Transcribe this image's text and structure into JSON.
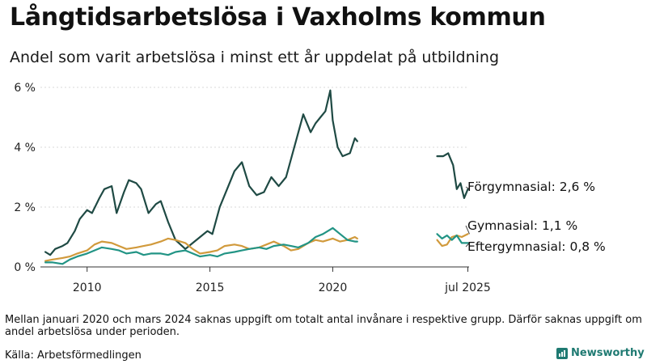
{
  "header": {
    "title": "Långtidsarbetslösa i Vaxholms kommun",
    "subtitle": "Andel som varit arbetslösa i minst ett år uppdelat på utbildning"
  },
  "footer": {
    "note": "Mellan januari 2020 och mars 2024 saknas uppgift om totalt antal invånare i respektive grupp. Därför saknas uppgift om andel arbetslösa under perioden.",
    "source": "Källa: Arbetsförmedlingen",
    "brand": "Newsworthy"
  },
  "colors": {
    "forgymnasial": "#1f4a44",
    "gymnasial": "#d19a3c",
    "eftergymnasial": "#229485",
    "grid": "#d9d9d9",
    "axis": "#333333",
    "brand": "#1f7a72"
  },
  "chart_data": {
    "type": "line",
    "title": "",
    "xlabel": "",
    "ylabel": "",
    "xlim": [
      2008.1,
      2025.55
    ],
    "ylim": [
      0,
      6
    ],
    "y_ticks": [
      0,
      2,
      4,
      6
    ],
    "y_tick_labels": [
      "0 %",
      "2 %",
      "4 %",
      "6 %"
    ],
    "x_ticks": [
      2010,
      2015,
      2020,
      2025.5
    ],
    "x_tick_labels": [
      "2010",
      "2015",
      "2020",
      "jul 2025"
    ],
    "grid": true,
    "series": [
      {
        "name": "Förgymnasial",
        "end_label": "Förgymnasial: 2,6 %",
        "color": "#1f4a44",
        "segments": [
          {
            "x": [
              2008.3,
              2008.5,
              2008.7,
              2009.0,
              2009.2,
              2009.5,
              2009.7,
              2010.0,
              2010.2,
              2010.5,
              2010.7,
              2011.0,
              2011.2,
              2011.5,
              2011.7,
              2012.0,
              2012.2,
              2012.5,
              2012.8,
              2013.0,
              2013.3,
              2013.6,
              2014.0,
              2014.3,
              2014.6,
              2014.9,
              2015.1,
              2015.4,
              2015.7,
              2016.0,
              2016.3,
              2016.6,
              2016.9,
              2017.2,
              2017.5,
              2017.8,
              2018.1,
              2018.5,
              2018.8,
              2019.1,
              2019.3,
              2019.5,
              2019.7,
              2019.9,
              2020.0,
              2020.2,
              2020.4,
              2020.7,
              2020.9,
              2021.0
            ],
            "y": [
              0.5,
              0.4,
              0.6,
              0.7,
              0.8,
              1.2,
              1.6,
              1.9,
              1.8,
              2.3,
              2.6,
              2.7,
              1.8,
              2.5,
              2.9,
              2.8,
              2.6,
              1.8,
              2.1,
              2.2,
              1.5,
              0.9,
              0.6,
              0.8,
              1.0,
              1.2,
              1.1,
              2.0,
              2.6,
              3.2,
              3.5,
              2.7,
              2.4,
              2.5,
              3.0,
              2.7,
              3.0,
              4.2,
              5.1,
              4.5,
              4.8,
              5.0,
              5.2,
              5.9,
              4.9,
              4.0,
              3.7,
              3.8,
              4.3,
              4.2
            ]
          },
          {
            "x": [
              2024.25,
              2024.5,
              2024.7,
              2024.9,
              2025.05,
              2025.2,
              2025.35,
              2025.5
            ],
            "y": [
              3.7,
              3.7,
              3.8,
              3.4,
              2.6,
              2.8,
              2.3,
              2.6
            ]
          }
        ]
      },
      {
        "name": "Gymnasial",
        "end_label": "Gymnasial: 1,1 %",
        "color": "#d19a3c",
        "segments": [
          {
            "x": [
              2008.3,
              2008.6,
              2009.0,
              2009.3,
              2009.6,
              2010.0,
              2010.3,
              2010.6,
              2011.0,
              2011.3,
              2011.6,
              2012.0,
              2012.3,
              2012.6,
              2013.0,
              2013.3,
              2013.6,
              2014.0,
              2014.3,
              2014.6,
              2015.0,
              2015.3,
              2015.6,
              2016.0,
              2016.3,
              2016.6,
              2017.0,
              2017.3,
              2017.6,
              2018.0,
              2018.3,
              2018.6,
              2019.0,
              2019.3,
              2019.6,
              2020.0,
              2020.3,
              2020.6,
              2020.9,
              2021.0
            ],
            "y": [
              0.2,
              0.25,
              0.3,
              0.35,
              0.45,
              0.55,
              0.75,
              0.85,
              0.8,
              0.7,
              0.6,
              0.65,
              0.7,
              0.75,
              0.85,
              0.95,
              0.9,
              0.8,
              0.6,
              0.45,
              0.5,
              0.55,
              0.7,
              0.75,
              0.7,
              0.6,
              0.65,
              0.75,
              0.85,
              0.7,
              0.55,
              0.6,
              0.8,
              0.9,
              0.85,
              0.95,
              0.85,
              0.9,
              1.0,
              0.95
            ]
          },
          {
            "x": [
              2024.25,
              2024.45,
              2024.65,
              2024.85,
              2025.05,
              2025.25,
              2025.5
            ],
            "y": [
              0.9,
              0.7,
              0.75,
              1.0,
              1.05,
              1.0,
              1.1
            ]
          }
        ]
      },
      {
        "name": "Eftergymnasial",
        "end_label": "Eftergymnasial: 0,8 %",
        "color": "#229485",
        "segments": [
          {
            "x": [
              2008.3,
              2008.6,
              2009.0,
              2009.3,
              2009.6,
              2010.0,
              2010.3,
              2010.6,
              2011.0,
              2011.3,
              2011.6,
              2012.0,
              2012.3,
              2012.6,
              2013.0,
              2013.3,
              2013.6,
              2014.0,
              2014.3,
              2014.6,
              2015.0,
              2015.3,
              2015.6,
              2016.0,
              2016.3,
              2016.6,
              2017.0,
              2017.3,
              2017.6,
              2018.0,
              2018.3,
              2018.6,
              2019.0,
              2019.3,
              2019.6,
              2020.0,
              2020.3,
              2020.6,
              2020.9,
              2021.0
            ],
            "y": [
              0.15,
              0.15,
              0.1,
              0.25,
              0.35,
              0.45,
              0.55,
              0.65,
              0.6,
              0.55,
              0.45,
              0.5,
              0.4,
              0.45,
              0.45,
              0.4,
              0.5,
              0.55,
              0.45,
              0.35,
              0.4,
              0.35,
              0.45,
              0.5,
              0.55,
              0.6,
              0.65,
              0.6,
              0.7,
              0.75,
              0.7,
              0.65,
              0.8,
              1.0,
              1.1,
              1.3,
              1.1,
              0.9,
              0.85,
              0.85
            ]
          },
          {
            "x": [
              2024.25,
              2024.45,
              2024.65,
              2024.85,
              2025.05,
              2025.25,
              2025.5
            ],
            "y": [
              1.1,
              0.95,
              1.05,
              0.9,
              1.05,
              0.8,
              0.8
            ]
          }
        ]
      }
    ]
  }
}
